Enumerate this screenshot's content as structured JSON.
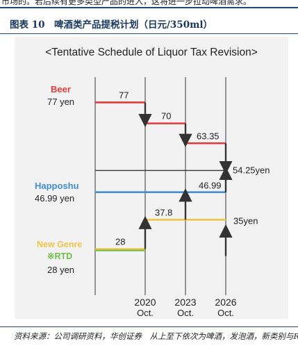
{
  "page": {
    "top_fragment": "市场的。若后续有更多类型产品的进入，这将进一步拉动啤酒需求。",
    "figure_title": "图表 10　啤酒类产品提税计划（日元/350ml）",
    "source_note": "资料来源：公司调研资料，华创证券　从上至下依次为啤酒，发泡酒，新类别与RTD"
  },
  "chart_data": {
    "type": "line",
    "title": "<Tentative Schedule of Liquor Tax Revision>",
    "x": [
      "2020\nOct.",
      "2023\nOct.",
      "2026\nOct."
    ],
    "x_years": [
      "2020",
      "2023",
      "2026"
    ],
    "x_month": "Oct.",
    "series": [
      {
        "name": "Beer",
        "start_label": "77 yen",
        "color": "#e8373c",
        "levels": [
          77,
          70,
          63.35,
          54.25
        ],
        "level_labels": [
          "77",
          "70",
          "63.35",
          "54.25yen"
        ]
      },
      {
        "name": "Happoshu",
        "start_label": "46.99 yen",
        "color": "#3f8fd2",
        "levels": [
          46.99,
          46.99,
          46.99,
          54.25
        ],
        "level_labels": [
          "",
          "",
          "46.99",
          ""
        ]
      },
      {
        "name": "New Genre",
        "name_line2": "※RTD",
        "start_label": "28 yen",
        "color": "#f2c44a",
        "color2": "#6dbd45",
        "levels": [
          28,
          37.8,
          37.8,
          54.25
        ],
        "rtd_levels": [
          28,
          28,
          28,
          35
        ],
        "level_labels": [
          "28",
          "37.8",
          "",
          "35yen"
        ]
      }
    ],
    "ylim": [
      20,
      85
    ],
    "grid": false
  }
}
